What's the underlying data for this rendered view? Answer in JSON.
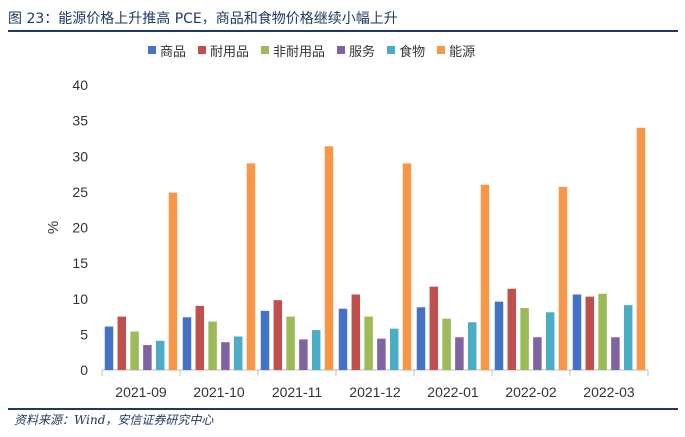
{
  "header": {
    "title": "图 23：能源价格上升推高 PCE，商品和食物价格继续小幅上升"
  },
  "footer": {
    "source": "资料来源：Wind，安信证券研究中心"
  },
  "chart_data": {
    "type": "bar",
    "title": "",
    "xlabel": "",
    "ylabel": "%",
    "ylim": [
      0,
      40
    ],
    "yticks": [
      0,
      5,
      10,
      15,
      20,
      25,
      30,
      35,
      40
    ],
    "grid": false,
    "legend_position": "top",
    "categories": [
      "2021-09",
      "2021-10",
      "2021-11",
      "2021-12",
      "2022-01",
      "2022-02",
      "2022-03"
    ],
    "series": [
      {
        "name": "商品",
        "color": "#4472c4",
        "values": [
          6.1,
          7.4,
          8.3,
          8.6,
          8.8,
          9.6,
          10.6
        ]
      },
      {
        "name": "耐用品",
        "color": "#c0504d",
        "values": [
          7.5,
          9.0,
          9.8,
          10.6,
          11.7,
          11.4,
          10.3
        ]
      },
      {
        "name": "非耐用品",
        "color": "#9bbb59",
        "values": [
          5.4,
          6.8,
          7.5,
          7.5,
          7.2,
          8.7,
          10.7
        ]
      },
      {
        "name": "服务",
        "color": "#8064a2",
        "values": [
          3.5,
          3.9,
          4.3,
          4.4,
          4.6,
          4.6,
          4.6
        ]
      },
      {
        "name": "食物",
        "color": "#4bacc6",
        "values": [
          4.1,
          4.7,
          5.6,
          5.8,
          6.7,
          8.1,
          9.1
        ]
      },
      {
        "name": "能源",
        "color": "#f79646",
        "values": [
          24.9,
          29.0,
          31.4,
          29.0,
          26.0,
          25.7,
          34.0
        ]
      }
    ]
  }
}
